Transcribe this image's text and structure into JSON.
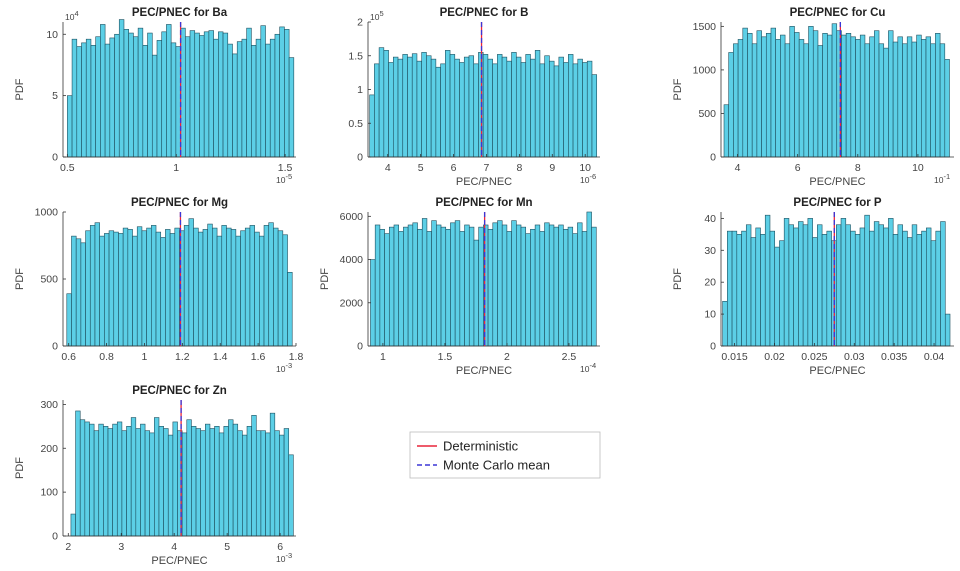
{
  "colors": {
    "bar_fill": "#5ccfe6",
    "bar_stroke": "#1d4f5e",
    "deterministic": "#e8253a",
    "monte_carlo_mean": "#3b37d6",
    "axis": "#333333"
  },
  "legend": {
    "items": [
      {
        "label": "Deterministic",
        "color": "#e8253a",
        "style": "solid"
      },
      {
        "label": "Monte Carlo mean",
        "color": "#3b37d6",
        "style": "dashed"
      }
    ]
  },
  "chart_data": [
    {
      "type": "bar",
      "title": "PEC/PNEC for Ba",
      "xlabel": "",
      "ylabel": "PDF",
      "xlim": [
        0.48,
        1.55
      ],
      "x_multiplier": "10^{-5}",
      "x_ticks": [
        0.5,
        1,
        1.5
      ],
      "x_tick_labels": [
        "0.5",
        "1",
        "1.5"
      ],
      "ylim": [
        0,
        11
      ],
      "y_multiplier": "10^{4}",
      "y_ticks": [
        0,
        5,
        10
      ],
      "y_tick_labels": [
        "0",
        "5",
        "10"
      ],
      "bin_range": [
        0.5,
        1.54
      ],
      "values": [
        5.0,
        9.6,
        9.0,
        9.3,
        9.6,
        9.1,
        9.8,
        10.8,
        9.2,
        9.7,
        10.0,
        11.2,
        10.4,
        10.1,
        9.8,
        10.5,
        9.1,
        10.1,
        8.3,
        9.5,
        10.2,
        10.8,
        9.3,
        9.0,
        10.5,
        9.8,
        10.3,
        10.1,
        9.9,
        10.2,
        10.3,
        9.6,
        10.2,
        10.1,
        9.2,
        8.4,
        9.4,
        9.6,
        10.5,
        9.1,
        9.6,
        10.7,
        9.2,
        9.6,
        10.0,
        10.6,
        10.4,
        8.1
      ],
      "deterministic": 1.02,
      "monte_carlo_mean": 1.02
    },
    {
      "type": "bar",
      "title": "PEC/PNEC for B",
      "xlabel": "PEC/PNEC",
      "ylabel": "",
      "xlim": [
        3.4,
        10.45
      ],
      "x_multiplier": "10^{-6}",
      "x_ticks": [
        4,
        5,
        6,
        7,
        8,
        9,
        10
      ],
      "x_tick_labels": [
        "4",
        "5",
        "6",
        "7",
        "8",
        "9",
        "10"
      ],
      "ylim": [
        0,
        2
      ],
      "y_multiplier": "10^{5}",
      "y_ticks": [
        0,
        0.5,
        1,
        1.5,
        2
      ],
      "y_tick_labels": [
        "0",
        "0.5",
        "1",
        "1.5",
        "2"
      ],
      "bin_range": [
        3.45,
        10.35
      ],
      "values": [
        0.92,
        1.38,
        1.62,
        1.58,
        1.4,
        1.48,
        1.45,
        1.52,
        1.48,
        1.53,
        1.42,
        1.55,
        1.5,
        1.45,
        1.33,
        1.38,
        1.58,
        1.52,
        1.45,
        1.4,
        1.48,
        1.5,
        1.38,
        1.55,
        1.52,
        1.45,
        1.38,
        1.52,
        1.48,
        1.42,
        1.55,
        1.48,
        1.4,
        1.52,
        1.45,
        1.58,
        1.38,
        1.5,
        1.42,
        1.35,
        1.48,
        1.4,
        1.52,
        1.38,
        1.45,
        1.4,
        1.42,
        1.22
      ],
      "deterministic": 6.85,
      "monte_carlo_mean": 6.85
    },
    {
      "type": "bar",
      "title": "PEC/PNEC for Cu",
      "xlabel": "PEC/PNEC",
      "ylabel": "PDF",
      "xlim": [
        3.45,
        11.2
      ],
      "x_multiplier": "10^{-1}",
      "x_ticks": [
        4,
        6,
        8,
        10
      ],
      "x_tick_labels": [
        "4",
        "6",
        "8",
        "10"
      ],
      "ylim": [
        0,
        1550
      ],
      "y_multiplier": "",
      "y_ticks": [
        0,
        500,
        1000,
        1500
      ],
      "y_tick_labels": [
        "0",
        "500",
        "1000",
        "1500"
      ],
      "bin_range": [
        3.55,
        11.05
      ],
      "values": [
        600,
        1200,
        1300,
        1350,
        1480,
        1420,
        1300,
        1450,
        1380,
        1420,
        1480,
        1350,
        1400,
        1300,
        1500,
        1430,
        1350,
        1300,
        1500,
        1450,
        1280,
        1420,
        1400,
        1530,
        1450,
        1400,
        1420,
        1380,
        1350,
        1400,
        1300,
        1380,
        1450,
        1300,
        1250,
        1450,
        1320,
        1380,
        1300,
        1380,
        1320,
        1400,
        1350,
        1380,
        1300,
        1420,
        1300,
        1120
      ],
      "deterministic": 7.42,
      "monte_carlo_mean": 7.42
    },
    {
      "type": "bar",
      "title": "PEC/PNEC for Mg",
      "xlabel": "",
      "ylabel": "PDF",
      "xlim": [
        0.57,
        1.8
      ],
      "x_multiplier": "10^{-3}",
      "x_ticks": [
        0.6,
        0.8,
        1,
        1.2,
        1.4,
        1.6,
        1.8
      ],
      "x_tick_labels": [
        "0.6",
        "0.8",
        "1",
        "1.2",
        "1.4",
        "1.6",
        "1.8"
      ],
      "ylim": [
        0,
        1000
      ],
      "y_multiplier": "",
      "y_ticks": [
        0,
        500,
        1000
      ],
      "y_tick_labels": [
        "0",
        "500",
        "1000"
      ],
      "bin_range": [
        0.59,
        1.78
      ],
      "values": [
        390,
        820,
        800,
        770,
        860,
        900,
        920,
        820,
        840,
        860,
        850,
        840,
        880,
        870,
        820,
        890,
        860,
        880,
        900,
        850,
        810,
        870,
        840,
        880,
        860,
        900,
        950,
        880,
        850,
        870,
        910,
        880,
        820,
        900,
        880,
        870,
        820,
        860,
        880,
        900,
        850,
        820,
        900,
        920,
        880,
        860,
        830,
        550
      ],
      "deterministic": 1.19,
      "monte_carlo_mean": 1.19
    },
    {
      "type": "bar",
      "title": "PEC/PNEC for Mn",
      "xlabel": "PEC/PNEC",
      "ylabel": "PDF",
      "xlim": [
        0.88,
        2.75
      ],
      "x_multiplier": "10^{-4}",
      "x_ticks": [
        1,
        1.5,
        2,
        2.5
      ],
      "x_tick_labels": [
        "1",
        "1.5",
        "2",
        "2.5"
      ],
      "ylim": [
        0,
        6200
      ],
      "y_multiplier": "",
      "y_ticks": [
        0,
        2000,
        4000,
        6000
      ],
      "y_tick_labels": [
        "0",
        "2000",
        "4000",
        "6000"
      ],
      "bin_range": [
        0.9,
        2.72
      ],
      "values": [
        4000,
        5600,
        5400,
        5200,
        5500,
        5600,
        5300,
        5500,
        5600,
        5700,
        5400,
        5900,
        5300,
        5800,
        5600,
        5500,
        5400,
        5700,
        5800,
        5300,
        5600,
        5500,
        4900,
        5500,
        5600,
        5400,
        5700,
        5800,
        5600,
        5300,
        5800,
        5600,
        5500,
        5200,
        5400,
        5600,
        5300,
        5700,
        5600,
        5500,
        5600,
        5400,
        5500,
        5200,
        5700,
        5300,
        6200,
        5500
      ],
      "deterministic": 1.82,
      "monte_carlo_mean": 1.82
    },
    {
      "type": "bar",
      "title": "PEC/PNEC for P",
      "xlabel": "PEC/PNEC",
      "ylabel": "PDF",
      "xlim": [
        0.0133,
        0.0425
      ],
      "x_multiplier": "",
      "x_ticks": [
        0.015,
        0.02,
        0.025,
        0.03,
        0.035,
        0.04
      ],
      "x_tick_labels": [
        "0.015",
        "0.02",
        "0.025",
        "0.03",
        "0.035",
        "0.04"
      ],
      "ylim": [
        0,
        42
      ],
      "y_multiplier": "",
      "y_ticks": [
        0,
        10,
        20,
        30,
        40
      ],
      "y_tick_labels": [
        "0",
        "10",
        "20",
        "30",
        "40"
      ],
      "bin_range": [
        0.0135,
        0.042
      ],
      "values": [
        14,
        36,
        36,
        35,
        36,
        38,
        34,
        37,
        35,
        41,
        36,
        31,
        33,
        40,
        38,
        37,
        39,
        38,
        40,
        34,
        38,
        35,
        36,
        33,
        38,
        40,
        38,
        36,
        35,
        37,
        41,
        36,
        39,
        38,
        37,
        40,
        35,
        38,
        36,
        34,
        38,
        35,
        36,
        37,
        33,
        36,
        39,
        10
      ],
      "deterministic": 0.0275,
      "monte_carlo_mean": 0.0275
    },
    {
      "type": "bar",
      "title": "PEC/PNEC for Zn",
      "xlabel": "PEC/PNEC",
      "ylabel": "PDF",
      "xlim": [
        1.9,
        6.3
      ],
      "x_multiplier": "10^{-3}",
      "x_ticks": [
        2,
        3,
        4,
        5,
        6
      ],
      "x_tick_labels": [
        "2",
        "3",
        "4",
        "5",
        "6"
      ],
      "ylim": [
        0,
        310
      ],
      "y_multiplier": "",
      "y_ticks": [
        0,
        100,
        200,
        300
      ],
      "y_tick_labels": [
        "0",
        "100",
        "200",
        "300"
      ],
      "bin_range": [
        2.05,
        6.25
      ],
      "values": [
        50,
        285,
        265,
        260,
        255,
        240,
        255,
        250,
        245,
        255,
        260,
        240,
        250,
        270,
        245,
        255,
        240,
        235,
        270,
        250,
        245,
        230,
        260,
        240,
        235,
        265,
        250,
        245,
        240,
        255,
        245,
        250,
        235,
        250,
        265,
        255,
        240,
        230,
        250,
        275,
        240,
        240,
        235,
        280,
        240,
        230,
        245,
        185
      ],
      "deterministic": 4.13,
      "monte_carlo_mean": 4.13
    }
  ]
}
